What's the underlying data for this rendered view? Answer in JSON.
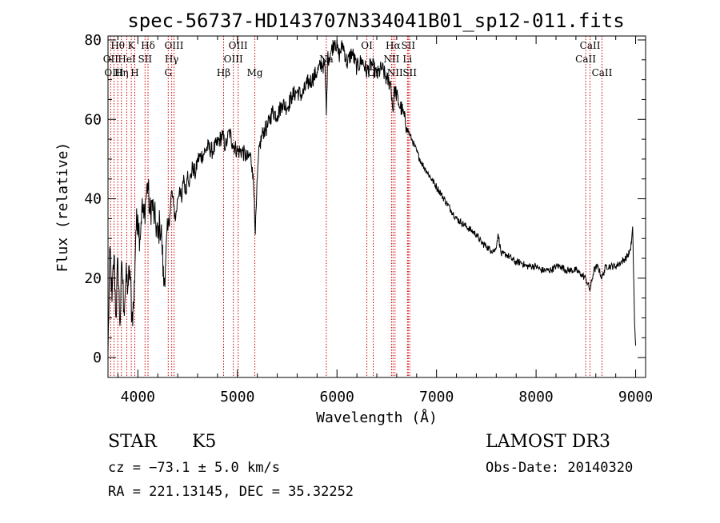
{
  "colors": {
    "spectrum": "#000000",
    "line_marker": "#cc0000",
    "background": "#ffffff"
  },
  "chart_data": {
    "type": "line",
    "title": "spec-56737-HD143707N334041B01_sp12-011.fits",
    "xlabel": "Wavelength (Å)",
    "ylabel": "Flux (relative)",
    "xlim": [
      3700,
      9100
    ],
    "ylim": [
      -5,
      81
    ],
    "xticks": [
      4000,
      5000,
      6000,
      7000,
      8000,
      9000
    ],
    "yticks": [
      0,
      20,
      40,
      60,
      80
    ],
    "series": [
      {
        "name": "flux",
        "points": [
          [
            3700,
            1
          ],
          [
            3720,
            28
          ],
          [
            3740,
            14
          ],
          [
            3760,
            26
          ],
          [
            3780,
            10
          ],
          [
            3800,
            25
          ],
          [
            3820,
            8
          ],
          [
            3840,
            24
          ],
          [
            3860,
            12
          ],
          [
            3880,
            20
          ],
          [
            3900,
            18
          ],
          [
            3920,
            22
          ],
          [
            3940,
            10
          ],
          [
            3960,
            14
          ],
          [
            3980,
            32
          ],
          [
            4000,
            36
          ],
          [
            4020,
            30
          ],
          [
            4040,
            38
          ],
          [
            4060,
            35
          ],
          [
            4080,
            40
          ],
          [
            4100,
            44
          ],
          [
            4120,
            36
          ],
          [
            4140,
            39
          ],
          [
            4160,
            36
          ],
          [
            4180,
            34
          ],
          [
            4200,
            30
          ],
          [
            4220,
            34
          ],
          [
            4240,
            30
          ],
          [
            4260,
            18
          ],
          [
            4280,
            25
          ],
          [
            4300,
            32
          ],
          [
            4320,
            36
          ],
          [
            4340,
            42
          ],
          [
            4360,
            38
          ],
          [
            4380,
            35
          ],
          [
            4400,
            40
          ],
          [
            4420,
            43
          ],
          [
            4440,
            39
          ],
          [
            4460,
            46
          ],
          [
            4480,
            41
          ],
          [
            4500,
            47
          ],
          [
            4520,
            44
          ],
          [
            4550,
            48
          ],
          [
            4580,
            46
          ],
          [
            4600,
            50
          ],
          [
            4650,
            51
          ],
          [
            4700,
            53
          ],
          [
            4750,
            52
          ],
          [
            4800,
            54
          ],
          [
            4850,
            56
          ],
          [
            4880,
            53
          ],
          [
            4900,
            55
          ],
          [
            4920,
            57
          ],
          [
            4950,
            54
          ],
          [
            5000,
            52
          ],
          [
            5050,
            52
          ],
          [
            5100,
            50
          ],
          [
            5130,
            51
          ],
          [
            5150,
            48
          ],
          [
            5170,
            40
          ],
          [
            5180,
            31
          ],
          [
            5190,
            38
          ],
          [
            5200,
            45
          ],
          [
            5220,
            53
          ],
          [
            5260,
            57
          ],
          [
            5300,
            58
          ],
          [
            5350,
            62
          ],
          [
            5400,
            61
          ],
          [
            5450,
            64
          ],
          [
            5500,
            63
          ],
          [
            5550,
            66
          ],
          [
            5600,
            67
          ],
          [
            5650,
            66
          ],
          [
            5700,
            69
          ],
          [
            5750,
            70
          ],
          [
            5800,
            72
          ],
          [
            5850,
            74
          ],
          [
            5880,
            73
          ],
          [
            5893,
            61
          ],
          [
            5905,
            75
          ],
          [
            5940,
            77
          ],
          [
            5980,
            80
          ],
          [
            6020,
            76
          ],
          [
            6060,
            79
          ],
          [
            6100,
            74
          ],
          [
            6150,
            77
          ],
          [
            6200,
            73
          ],
          [
            6250,
            75
          ],
          [
            6300,
            72
          ],
          [
            6350,
            74
          ],
          [
            6400,
            71
          ],
          [
            6450,
            73
          ],
          [
            6500,
            70
          ],
          [
            6540,
            69
          ],
          [
            6563,
            62
          ],
          [
            6580,
            68
          ],
          [
            6620,
            64
          ],
          [
            6660,
            62
          ],
          [
            6700,
            58
          ],
          [
            6750,
            55
          ],
          [
            6800,
            52
          ],
          [
            6850,
            49
          ],
          [
            6900,
            47
          ],
          [
            6950,
            45
          ],
          [
            7000,
            43
          ],
          [
            7050,
            41
          ],
          [
            7100,
            39
          ],
          [
            7150,
            37
          ],
          [
            7200,
            35
          ],
          [
            7250,
            34
          ],
          [
            7300,
            33
          ],
          [
            7350,
            32
          ],
          [
            7400,
            31
          ],
          [
            7450,
            29
          ],
          [
            7500,
            28
          ],
          [
            7550,
            27
          ],
          [
            7590,
            27
          ],
          [
            7620,
            31
          ],
          [
            7650,
            26
          ],
          [
            7700,
            26
          ],
          [
            7750,
            25
          ],
          [
            7800,
            24
          ],
          [
            7850,
            24
          ],
          [
            7900,
            23
          ],
          [
            7950,
            23
          ],
          [
            8000,
            23
          ],
          [
            8050,
            22
          ],
          [
            8100,
            22
          ],
          [
            8150,
            22
          ],
          [
            8200,
            23
          ],
          [
            8250,
            23
          ],
          [
            8300,
            22
          ],
          [
            8350,
            22
          ],
          [
            8400,
            22
          ],
          [
            8450,
            21
          ],
          [
            8498,
            20
          ],
          [
            8542,
            17
          ],
          [
            8580,
            22
          ],
          [
            8620,
            23
          ],
          [
            8662,
            20
          ],
          [
            8700,
            23
          ],
          [
            8750,
            23
          ],
          [
            8800,
            23
          ],
          [
            8850,
            24
          ],
          [
            8900,
            25
          ],
          [
            8950,
            27
          ],
          [
            8970,
            33
          ],
          [
            8990,
            8
          ],
          [
            9000,
            3
          ]
        ]
      }
    ],
    "spectral_lines": [
      {
        "label": "Hθ",
        "wavelength": 3798,
        "row": 1
      },
      {
        "label": "OII",
        "wavelength": 3727,
        "row": 2
      },
      {
        "label": "OIII",
        "wavelength": 3760,
        "row": 3
      },
      {
        "label": "K",
        "wavelength": 3934,
        "row": 1
      },
      {
        "label": "HeI",
        "wavelength": 3889,
        "row": 2
      },
      {
        "label": "Hη",
        "wavelength": 3835,
        "row": 3
      },
      {
        "label": "SII",
        "wavelength": 4072,
        "row": 2
      },
      {
        "label": "H",
        "wavelength": 3969,
        "row": 3
      },
      {
        "label": "Hδ",
        "wavelength": 4102,
        "row": 1
      },
      {
        "label": "OIII",
        "wavelength": 4363,
        "row": 1
      },
      {
        "label": "Hγ",
        "wavelength": 4340,
        "row": 2
      },
      {
        "label": "G",
        "wavelength": 4305,
        "row": 3
      },
      {
        "label": "Hβ",
        "wavelength": 4861,
        "row": 3
      },
      {
        "label": "OIII",
        "wavelength": 5007,
        "row": 1
      },
      {
        "label": "OIII",
        "wavelength": 4959,
        "row": 2
      },
      {
        "label": "Mg",
        "wavelength": 5175,
        "row": 3
      },
      {
        "label": "Na",
        "wavelength": 5893,
        "row": 2
      },
      {
        "label": "OI",
        "wavelength": 6300,
        "row": 1
      },
      {
        "label": "OI",
        "wavelength": 6364,
        "row": 3
      },
      {
        "label": "Hα",
        "wavelength": 6563,
        "row": 1
      },
      {
        "label": "SII",
        "wavelength": 6716,
        "row": 1
      },
      {
        "label": "NII",
        "wavelength": 6548,
        "row": 2
      },
      {
        "label": "Li",
        "wavelength": 6708,
        "row": 2
      },
      {
        "label": "NII",
        "wavelength": 6583,
        "row": 3
      },
      {
        "label": "SII",
        "wavelength": 6731,
        "row": 3
      },
      {
        "label": "CaII",
        "wavelength": 8542,
        "row": 1
      },
      {
        "label": "CaII",
        "wavelength": 8498,
        "row": 2
      },
      {
        "label": "CaII",
        "wavelength": 8662,
        "row": 3
      }
    ]
  },
  "info": {
    "object_type": "STAR",
    "subclass": "K5",
    "survey": "LAMOST DR3",
    "redshift": "cz = −73.1 ± 5.0 km/s",
    "obs_date": "Obs-Date: 20140320",
    "coords": "RA = 221.13145, DEC =  35.32252"
  }
}
